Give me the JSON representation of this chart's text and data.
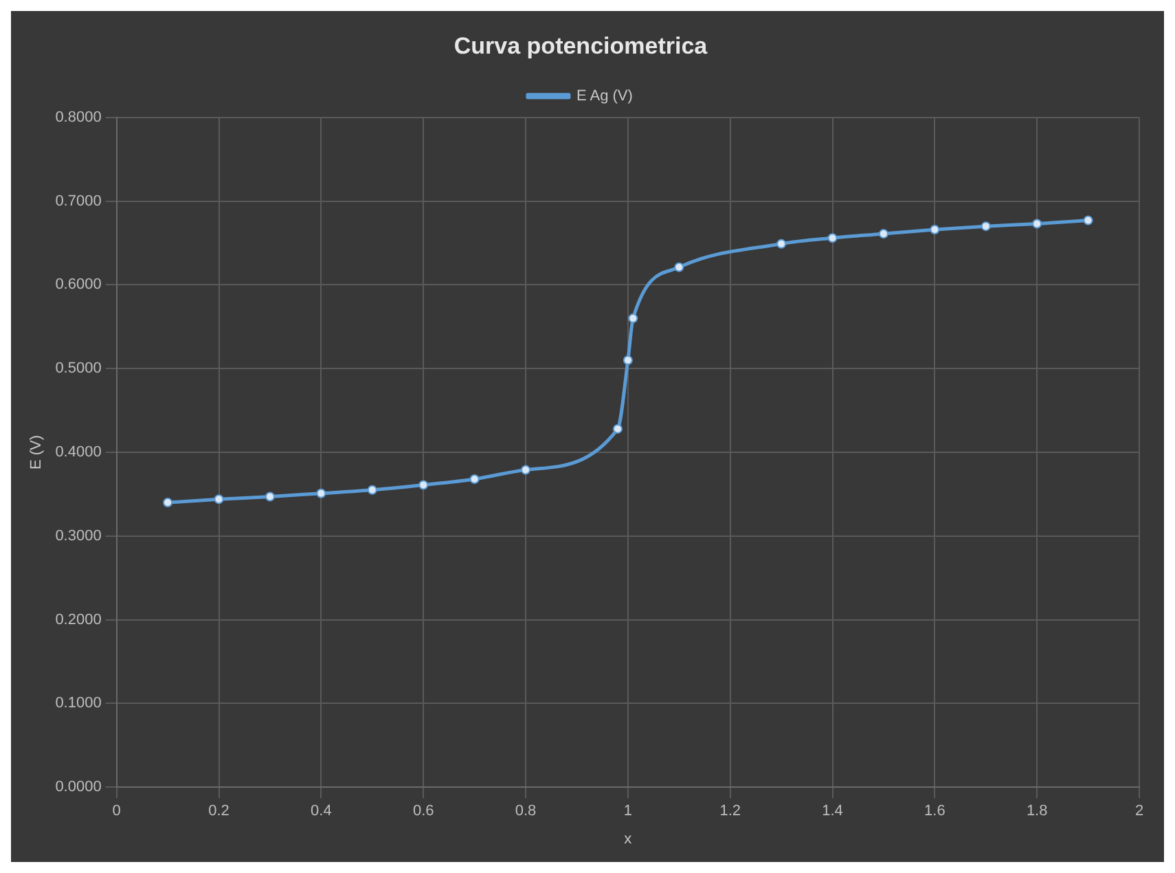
{
  "chart_data": {
    "type": "line",
    "title": "Curva potenciometrica",
    "xlabel": "x",
    "ylabel": "E (V)",
    "series": [
      {
        "name": "E Ag (V)",
        "color": "#5b9bd5",
        "x": [
          0.1,
          0.2,
          0.3,
          0.4,
          0.5,
          0.6,
          0.7,
          0.8,
          0.98,
          1.0,
          1.01,
          1.1,
          1.3,
          1.4,
          1.5,
          1.6,
          1.7,
          1.8,
          1.9
        ],
        "values": [
          0.34,
          0.344,
          0.347,
          0.351,
          0.355,
          0.361,
          0.368,
          0.379,
          0.428,
          0.51,
          0.56,
          0.621,
          0.649,
          0.656,
          0.661,
          0.666,
          0.67,
          0.673,
          0.677
        ]
      }
    ],
    "xlim": [
      0,
      2
    ],
    "xticks": [
      0,
      0.2,
      0.4,
      0.6,
      0.8,
      1,
      1.2,
      1.4,
      1.6,
      1.8,
      2
    ],
    "ylim": [
      0,
      0.8
    ],
    "yticks": [
      {
        "value": 0,
        "label": "0.0000"
      },
      {
        "value": 0.1,
        "label": "0.1000"
      },
      {
        "value": 0.2,
        "label": "0.2000"
      },
      {
        "value": 0.3,
        "label": "0.3000"
      },
      {
        "value": 0.4,
        "label": "0.4000"
      },
      {
        "value": 0.5,
        "label": "0.5000"
      },
      {
        "value": 0.6,
        "label": "0.6000"
      },
      {
        "value": 0.7,
        "label": "0.7000"
      },
      {
        "value": 0.8,
        "label": "0.8000"
      }
    ],
    "grid": true,
    "legend": "top",
    "marker": "circle",
    "line_style": "solid"
  }
}
